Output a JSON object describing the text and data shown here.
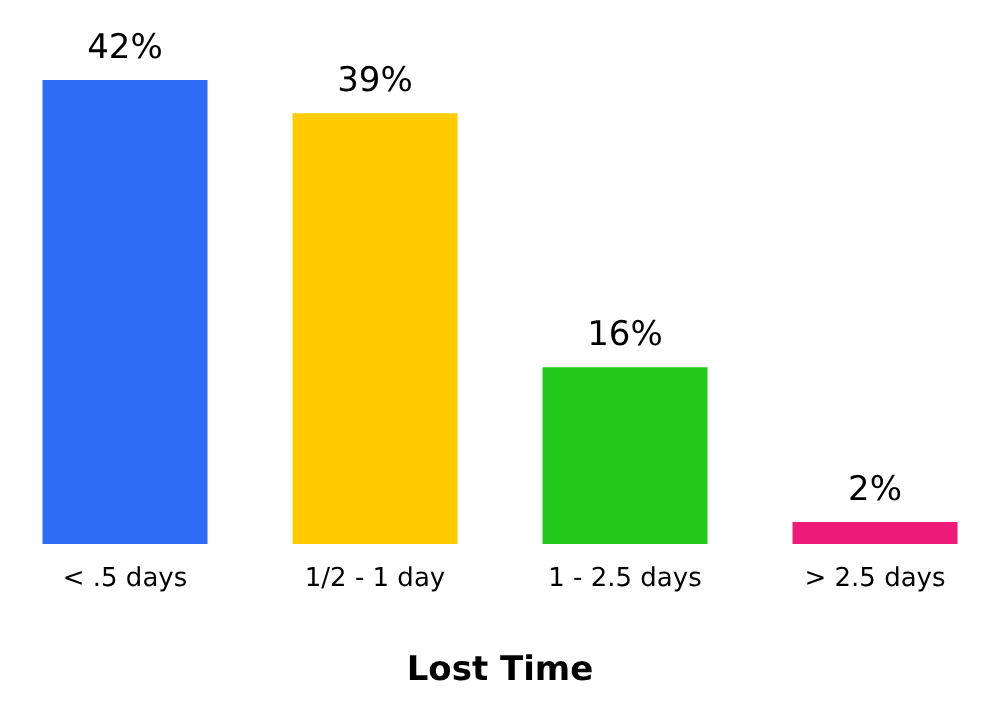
{
  "chart_data": {
    "type": "bar",
    "xlabel": "Lost Time",
    "categories": [
      "< .5 days",
      "1/2 - 1 day",
      "1 - 2.5 days",
      "> 2.5 days"
    ],
    "values": [
      42,
      39,
      16,
      2
    ],
    "value_labels": [
      "42%",
      "39%",
      "16%",
      "2%"
    ],
    "colors": [
      "#2e6cf5",
      "#ffcc00",
      "#22c81a",
      "#ee1a7a"
    ],
    "grid": false,
    "legend": false
  }
}
